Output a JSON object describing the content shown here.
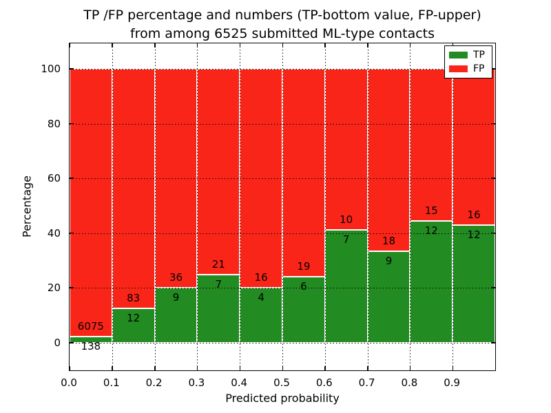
{
  "figure": {
    "title_line1": "TP /FP percentage and numbers (TP-bottom value, FP-upper)",
    "title_line2": "from among 6525 submitted ML-type contacts"
  },
  "chart_data": {
    "type": "bar",
    "stacked": true,
    "normalized_to_percent": true,
    "title": "TP /FP percentage and numbers (TP-bottom value, FP-upper) from among 6525 submitted ML-type contacts",
    "xlabel": "Predicted probability",
    "ylabel": "Percentage",
    "total_contacts": 6525,
    "bin_edges": [
      0.0,
      0.1,
      0.2,
      0.3,
      0.4,
      0.5,
      0.6,
      0.7,
      0.8,
      0.9,
      1.0
    ],
    "bin_labels": [
      "0.0-0.1",
      "0.1-0.2",
      "0.2-0.3",
      "0.3-0.4",
      "0.4-0.5",
      "0.5-0.6",
      "0.6-0.7",
      "0.7-0.8",
      "0.8-0.9",
      "0.9-1.0"
    ],
    "series": [
      {
        "name": "TP",
        "color": "#228B22",
        "counts": [
          138,
          12,
          9,
          7,
          4,
          6,
          7,
          9,
          12,
          12
        ],
        "percent": [
          2.22,
          12.63,
          20.0,
          25.0,
          20.0,
          24.0,
          41.18,
          33.33,
          44.44,
          42.86
        ]
      },
      {
        "name": "FP",
        "color": "#FA2519",
        "counts": [
          6075,
          83,
          36,
          21,
          16,
          19,
          10,
          18,
          15,
          16
        ],
        "percent": [
          97.78,
          87.37,
          80.0,
          75.0,
          80.0,
          76.0,
          58.82,
          66.67,
          55.56,
          57.14
        ]
      }
    ],
    "xticks": [
      "0.0",
      "0.1",
      "0.2",
      "0.3",
      "0.4",
      "0.5",
      "0.6",
      "0.7",
      "0.8",
      "0.9"
    ],
    "yticks": [
      0,
      20,
      40,
      60,
      80,
      100
    ],
    "xlim": [
      0.0,
      1.0
    ],
    "ylim": [
      -10,
      110
    ],
    "grid": "dotted",
    "legend_position": "upper right"
  },
  "legend": {
    "items": [
      {
        "label": "TP",
        "color": "#228B22"
      },
      {
        "label": "FP",
        "color": "#FA2519"
      }
    ]
  }
}
